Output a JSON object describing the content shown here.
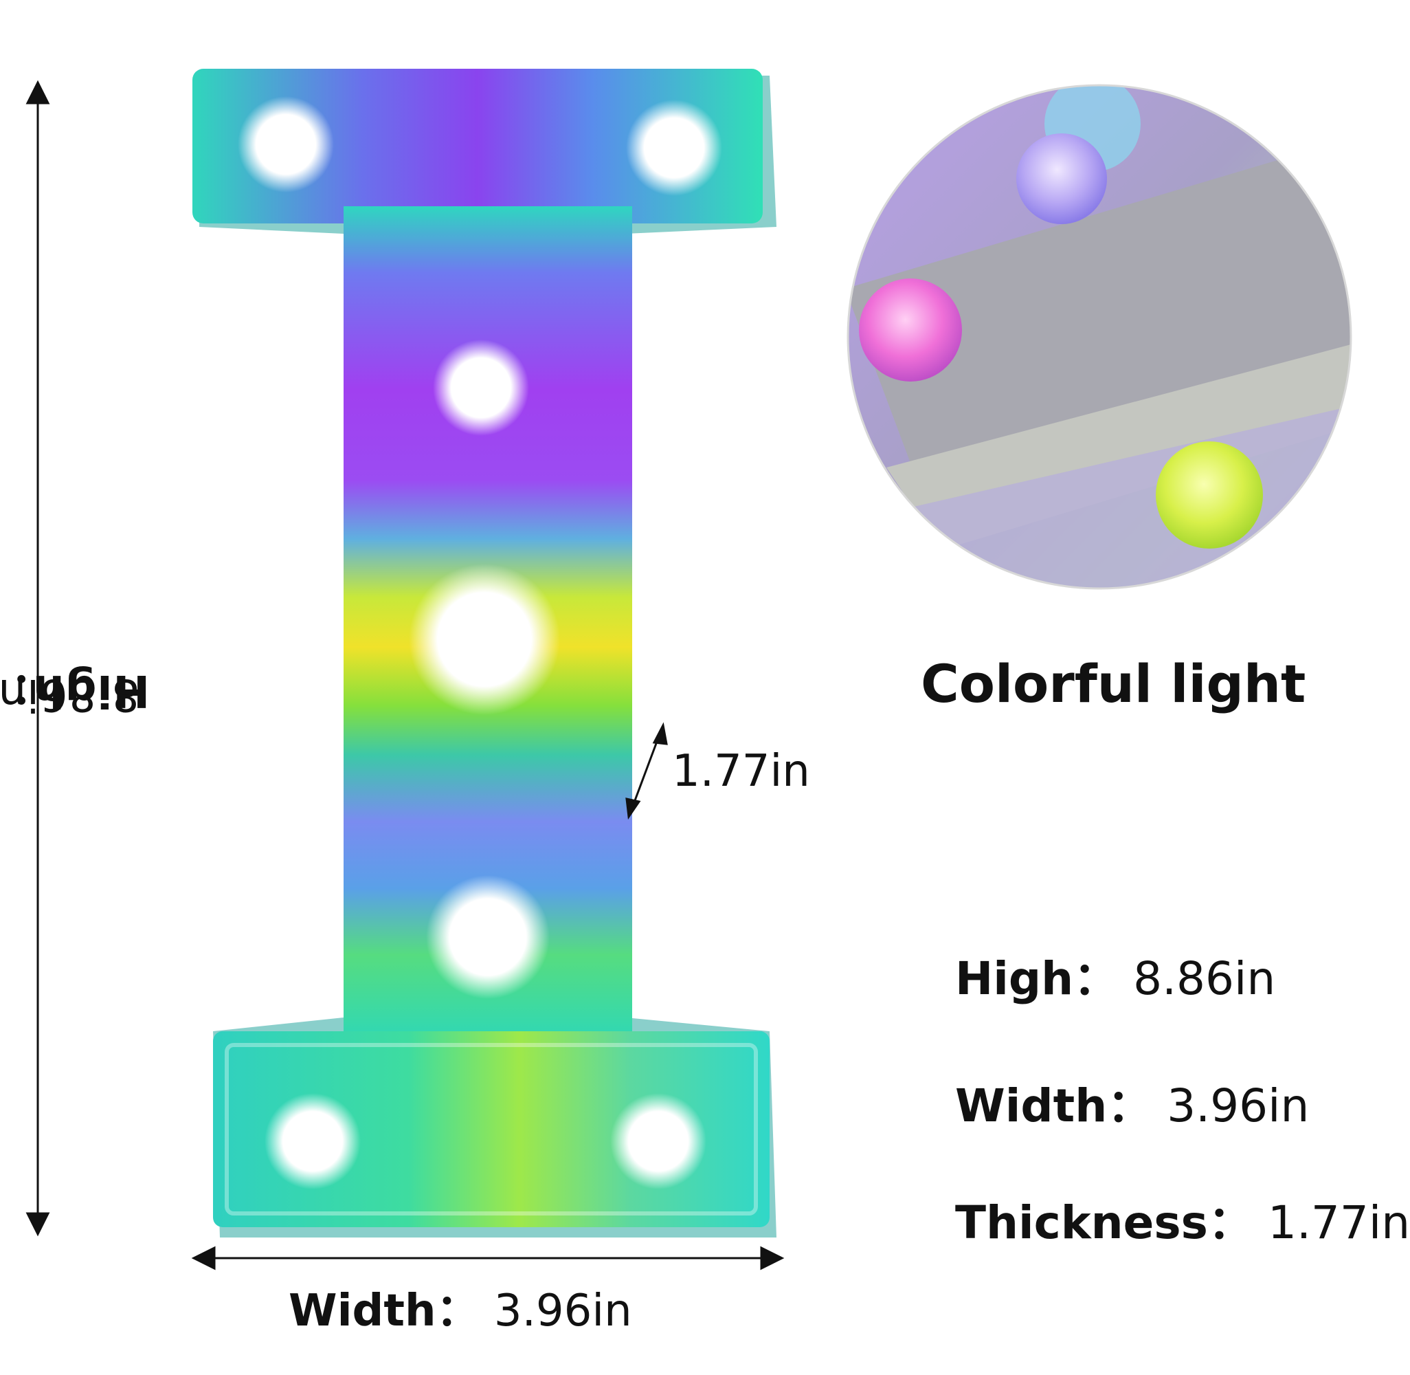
{
  "dimensions": {
    "height": {
      "label": "High：",
      "value": "8.86in"
    },
    "width": {
      "label": "Width：",
      "value": "3.96in"
    },
    "thickness": {
      "value": "1.77in"
    }
  },
  "caption": "Colorful light",
  "specs": [
    {
      "label": "High：",
      "value": "8.86in"
    },
    {
      "label": "Width：",
      "value": "3.96in"
    },
    {
      "label": "Thickness：",
      "value": "1.77in"
    }
  ],
  "colors": {
    "teal": "#2fd6b8",
    "purple": "#9a40f0",
    "yellow": "#e6ec2a",
    "blue": "#6a7cf0",
    "bulb": "#ffffff"
  }
}
